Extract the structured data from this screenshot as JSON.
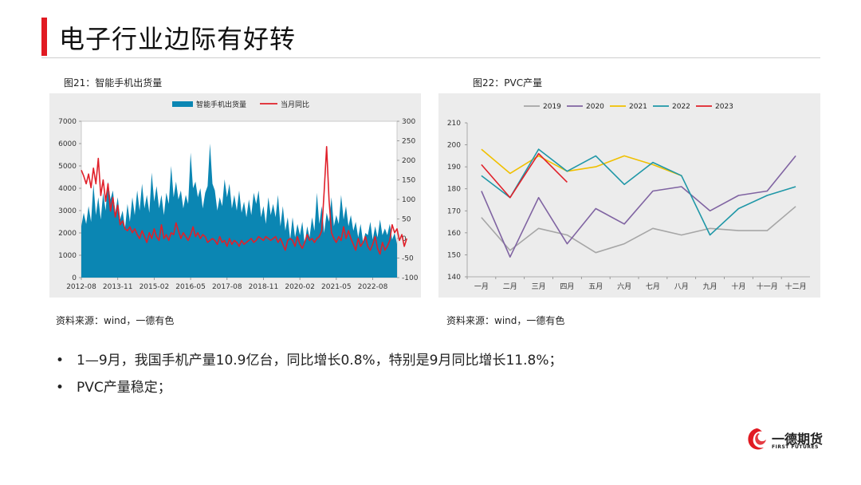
{
  "page": {
    "title": "电子行业边际有好转"
  },
  "figures": [
    {
      "caption": "图21：智能手机出货量",
      "source": "资料来源：wind，一德有色"
    },
    {
      "caption": "图22：PVC产量",
      "source": "资料来源：wind，一德有色"
    }
  ],
  "bullets": [
    "1—9月，我国手机产量10.9亿台，同比增长0.8%，特别是9月同比增长11.8%；",
    "PVC产量稳定；"
  ],
  "logo": {
    "name": "一德期货",
    "sub": "FIRST FUTURES"
  },
  "colors": {
    "accent": "#e11a22",
    "area": "#0b86b3",
    "yoy": "#e0202a",
    "panel_bg": "#ececec"
  },
  "chart_data": [
    {
      "type": "area",
      "title": "",
      "x_labels": [
        "2012-08",
        "2013-11",
        "2015-02",
        "2016-05",
        "2017-08",
        "2018-11",
        "2020-02",
        "2021-05",
        "2022-08"
      ],
      "ylim_left": [
        0,
        7000
      ],
      "ylim_right": [
        -100,
        300
      ],
      "yticks_left": [
        "0",
        "1000",
        "2000",
        "3000",
        "4000",
        "5000",
        "6000",
        "7000"
      ],
      "yticks_right": [
        "-100",
        "-50",
        "0",
        "50",
        "100",
        "150",
        "200",
        "250",
        "300"
      ],
      "legend": [
        "智能手机出货量",
        "当月同比"
      ],
      "legend_position": "top",
      "series": [
        {
          "name": "智能手机出货量",
          "axis": "left",
          "values": [
            2300,
            2900,
            2400,
            3200,
            2500,
            4200,
            2800,
            3600,
            2600,
            3800,
            3000,
            4300,
            3500,
            3900,
            2900,
            3600,
            2600,
            3000,
            2200,
            3300,
            2500,
            3600,
            2800,
            3900,
            3000,
            4200,
            3100,
            3700,
            2900,
            4700,
            3400,
            4100,
            3100,
            3700,
            2800,
            3800,
            3300,
            5000,
            3600,
            4300,
            3500,
            3900,
            3100,
            3700,
            3300,
            5600,
            4000,
            4300,
            3600,
            4000,
            3100,
            3800,
            4100,
            6000,
            4200,
            3900,
            3000,
            3600,
            3200,
            4400,
            3600,
            4200,
            3100,
            3700,
            3000,
            3900,
            2900,
            3400,
            2700,
            3500,
            2800,
            3800,
            3300,
            3900,
            2700,
            3200,
            2400,
            3600,
            2800,
            3300,
            2700,
            3700,
            2300,
            3200,
            2100,
            2700,
            1700,
            2700,
            1800,
            2400,
            1900,
            2500,
            1500,
            2300,
            1800,
            2700,
            2100,
            3800,
            2400,
            3200,
            2000,
            2900,
            2500,
            3600,
            2300,
            2800,
            2400,
            3700,
            2600,
            3200,
            2300,
            2800,
            2100,
            2500,
            1800,
            2400,
            1600,
            2000,
            1900,
            2500,
            1700,
            2300,
            1800,
            2600,
            1900,
            2200,
            1900,
            2400,
            1700,
            2000,
            1500
          ]
        },
        {
          "name": "当月同比",
          "axis": "right",
          "values": [
            175,
            160,
            140,
            165,
            130,
            180,
            140,
            205,
            110,
            150,
            95,
            140,
            70,
            105,
            55,
            85,
            35,
            45,
            25,
            20,
            30,
            15,
            25,
            10,
            0,
            20,
            5,
            -10,
            15,
            0,
            25,
            5,
            -5,
            35,
            0,
            10,
            -5,
            15,
            10,
            40,
            20,
            0,
            15,
            5,
            -5,
            10,
            30,
            5,
            15,
            0,
            10,
            5,
            -10,
            -5,
            0,
            -5,
            -15,
            5,
            -10,
            -5,
            -20,
            0,
            -15,
            -5,
            -10,
            -20,
            -5,
            -15,
            -10,
            -5,
            0,
            -10,
            -5,
            5,
            0,
            -5,
            5,
            0,
            -5,
            0,
            5,
            -10,
            0,
            -15,
            -30,
            -5,
            0,
            -5,
            -20,
            5,
            -15,
            -25,
            -10,
            10,
            -5,
            0,
            -10,
            0,
            5,
            20,
            120,
            235,
            100,
            15,
            0,
            -10,
            5,
            -5,
            30,
            0,
            20,
            0,
            -15,
            -30,
            0,
            -20,
            -10,
            5,
            -20,
            -30,
            -15,
            5,
            -25,
            -40,
            -10,
            -30,
            -20,
            -5,
            35,
            15,
            25,
            -5,
            10,
            -20,
            0
          ]
        }
      ]
    },
    {
      "type": "line",
      "title": "",
      "categories": [
        "一月",
        "二月",
        "三月",
        "四月",
        "五月",
        "六月",
        "七月",
        "八月",
        "九月",
        "十月",
        "十一月",
        "十二月"
      ],
      "ylim": [
        140,
        210
      ],
      "yticks": [
        "140",
        "150",
        "160",
        "170",
        "180",
        "190",
        "200",
        "210"
      ],
      "legend_position": "top",
      "series": [
        {
          "name": "2019",
          "color": "#a6a6a6",
          "values": [
            167,
            152,
            162,
            159,
            151,
            155,
            162,
            159,
            162,
            161,
            161,
            172
          ]
        },
        {
          "name": "2020",
          "color": "#8064a2",
          "values": [
            179,
            149,
            176,
            155,
            171,
            164,
            179,
            181,
            170,
            177,
            179,
            195
          ]
        },
        {
          "name": "2021",
          "color": "#f0c000",
          "values": [
            198,
            187,
            195,
            188,
            190,
            195,
            191,
            186,
            null,
            null,
            null,
            181
          ]
        },
        {
          "name": "2022",
          "color": "#1f97a7",
          "values": [
            186,
            176,
            198,
            188,
            195,
            182,
            192,
            186,
            159,
            171,
            177,
            181
          ]
        },
        {
          "name": "2023",
          "color": "#e0202a",
          "values": [
            191,
            176,
            196,
            183,
            null,
            null,
            null,
            null,
            null,
            null,
            null,
            null
          ]
        }
      ]
    }
  ]
}
